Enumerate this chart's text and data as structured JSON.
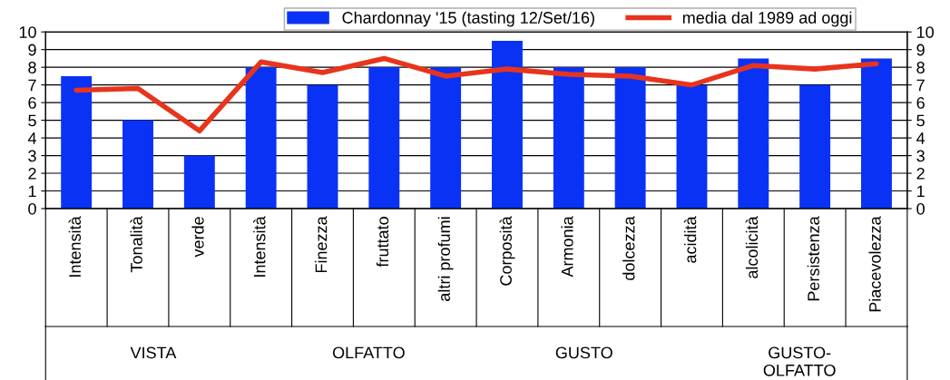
{
  "chart_data": {
    "type": "bar",
    "categories": [
      "Intensità",
      "Tonalità",
      "verde",
      "Intensità",
      "Finezza",
      "fruttato",
      "altri profumi",
      "Corposità",
      "Armonia",
      "dolcezza",
      "acidità",
      "alcolicità",
      "Persistenza",
      "Piacevolezza"
    ],
    "series": [
      {
        "name": "Chardonnay '15 (tasting 12/Set/16)",
        "color": "#0a32f5",
        "values": [
          7.5,
          5,
          3,
          8,
          7,
          8,
          8,
          9.5,
          8,
          8,
          7,
          8.5,
          7,
          8.5
        ]
      },
      {
        "name": "media dal 1989 ad oggi",
        "type": "line",
        "color": "#e8341c",
        "values": [
          6.7,
          6.8,
          4.4,
          8.3,
          7.7,
          8.5,
          7.5,
          7.9,
          7.6,
          7.5,
          7.0,
          8.1,
          7.9,
          8.2
        ]
      }
    ],
    "ylim": [
      0,
      10
    ],
    "yticks": [
      0,
      1,
      2,
      3,
      4,
      5,
      6,
      7,
      8,
      9,
      10
    ],
    "y2lim": [
      0,
      10
    ],
    "y2ticks": [
      0,
      1,
      2,
      3,
      4,
      5,
      6,
      7,
      8,
      9,
      10
    ],
    "grid": "y",
    "legend": "top",
    "marker": "none",
    "line_style": "solid",
    "annotations": [
      "VISTA",
      "OLFATTO",
      "GUSTO",
      "GUSTO-\nOLFATTO"
    ]
  }
}
